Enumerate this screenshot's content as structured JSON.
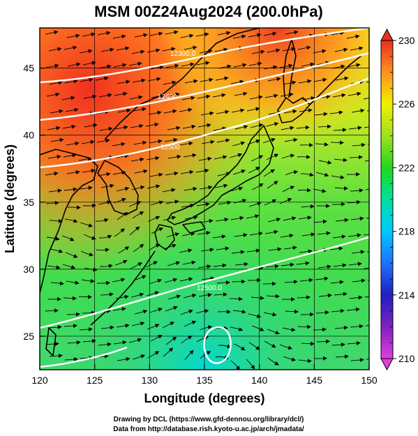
{
  "title": "MSM 00Z24Aug2024 (200.0hPa)",
  "xlabel": "Longitude (degrees)",
  "ylabel": "Latitude  (degrees)",
  "credits": [
    "Drawing by DCL (https://www.gfd-dennou.org/library/dcl/)",
    "Data from http://database.rish.kyoto-u.ac.jp/arch/jmadata/"
  ],
  "chart_data": {
    "type": "heatmap",
    "xlim": [
      120,
      150
    ],
    "ylim": [
      22.5,
      48
    ],
    "xticks": [
      120,
      125,
      130,
      135,
      140,
      145,
      150
    ],
    "yticks": [
      25,
      30,
      35,
      40,
      45
    ],
    "colorbar": {
      "min": 210,
      "max": 230,
      "ticks": [
        210,
        214,
        218,
        222,
        226,
        230
      ],
      "stops": [
        "#e040e0",
        "#9020c0",
        "#2020c0",
        "#2060ff",
        "#00c8ff",
        "#00e0a0",
        "#20d820",
        "#a0e020",
        "#f0f000",
        "#ffb020",
        "#ff6020",
        "#e83020"
      ]
    },
    "contour_labels": [
      "12300.0",
      "12400",
      "12500",
      "12500.0"
    ],
    "grid": true
  },
  "colors": {
    "contour": "#ffffff",
    "streamline": "#000000",
    "coastline": "#000000"
  }
}
